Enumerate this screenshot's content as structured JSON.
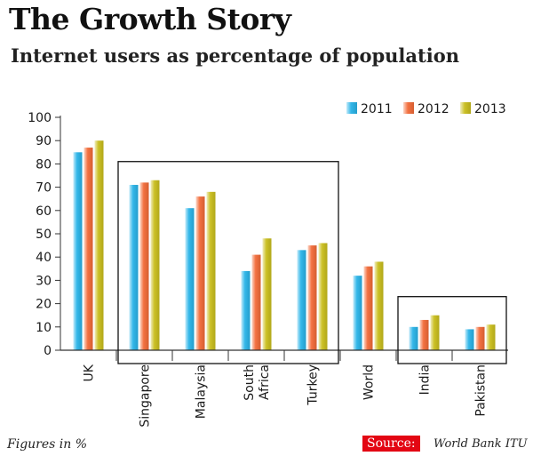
{
  "chart_data": {
    "type": "bar",
    "title": "The Growth Story",
    "subtitle": "Internet users as percentage of population",
    "categories": [
      [
        "UK"
      ],
      [
        "Singapore"
      ],
      [
        "Malaysia"
      ],
      [
        "South",
        "Africa"
      ],
      [
        "Turkey"
      ],
      [
        "World"
      ],
      [
        "India"
      ],
      [
        "Pakistan"
      ]
    ],
    "series": [
      {
        "name": "2011",
        "color": "#29b3e8",
        "values": [
          85,
          71,
          61,
          34,
          43,
          32,
          10,
          9
        ]
      },
      {
        "name": "2012",
        "color": "#f26b38",
        "values": [
          87,
          72,
          66,
          41,
          45,
          36,
          13,
          10
        ]
      },
      {
        "name": "2013",
        "color": "#c9be1c",
        "values": [
          90,
          73,
          68,
          48,
          46,
          38,
          15,
          11
        ]
      }
    ],
    "ylim": [
      0,
      100
    ],
    "yticks": [
      0,
      10,
      20,
      30,
      40,
      50,
      60,
      70,
      80,
      90,
      100
    ],
    "xlabel": "",
    "ylabel": "",
    "legend_position": "top-right",
    "highlight_groups": [
      [
        1,
        4
      ],
      [
        6,
        7
      ]
    ]
  },
  "footer": {
    "note": "Figures in %",
    "source_label": "Source:",
    "source_text": "World Bank ITU"
  }
}
